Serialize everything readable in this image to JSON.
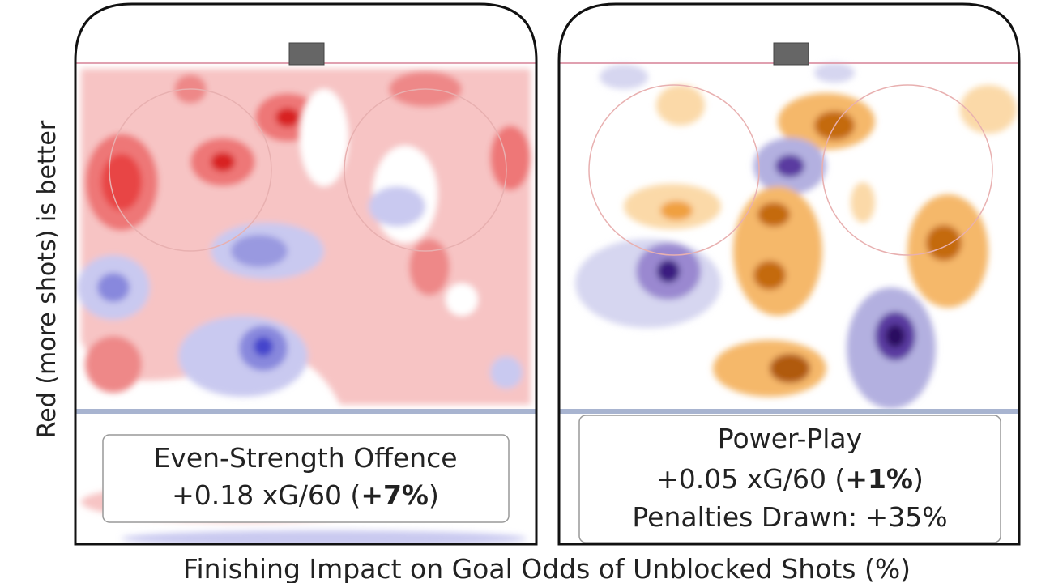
{
  "y_label": "Red (more shots) is better",
  "x_label": "Finishing Impact on Goal Odds of Unblocked Shots (%)",
  "panels": [
    {
      "title": "Even-Strength Offence",
      "stat": {
        "prefix": "+0.18 xG/60 (",
        "bold": "+7%",
        "suffix": ")"
      }
    },
    {
      "title": "Power-Play",
      "stat": {
        "prefix": "+0.05 xG/60 (",
        "bold": "+1%",
        "suffix": ")"
      },
      "note": "Penalties Drawn: +35%"
    }
  ]
}
